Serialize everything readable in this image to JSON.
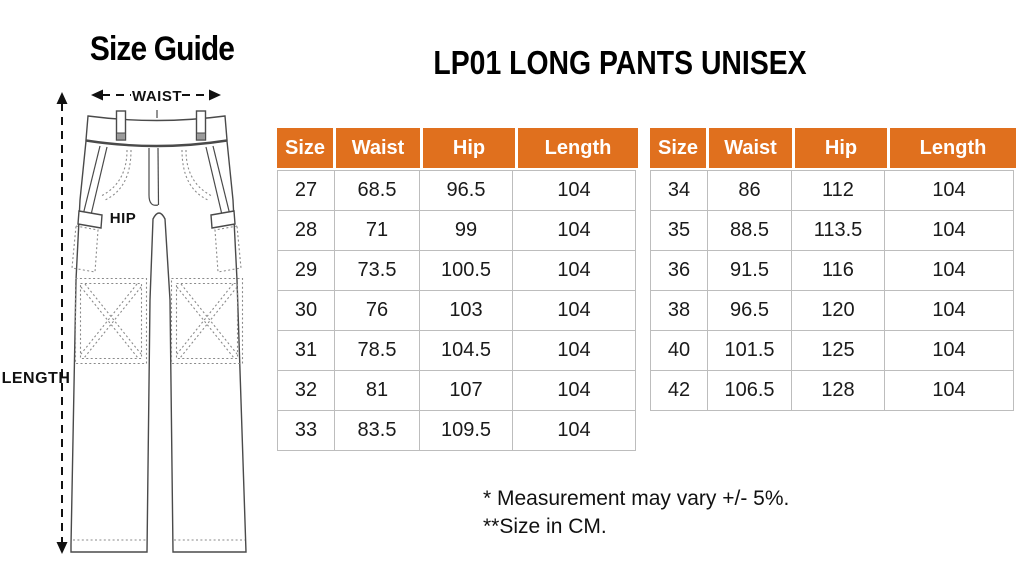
{
  "section_title": "Size Guide",
  "page_title": "LP01 LONG PANTS UNISEX",
  "diagram": {
    "waist_label": "WAIST",
    "hip_label": "HIP",
    "length_label": "LENGTH"
  },
  "size_table": {
    "headers": [
      "Size",
      "Waist",
      "Hip",
      "Length"
    ],
    "left_rows": [
      [
        "27",
        "68.5",
        "96.5",
        "104"
      ],
      [
        "28",
        "71",
        "99",
        "104"
      ],
      [
        "29",
        "73.5",
        "100.5",
        "104"
      ],
      [
        "30",
        "76",
        "103",
        "104"
      ],
      [
        "31",
        "78.5",
        "104.5",
        "104"
      ],
      [
        "32",
        "81",
        "107",
        "104"
      ],
      [
        "33",
        "83.5",
        "109.5",
        "104"
      ]
    ],
    "right_rows": [
      [
        "34",
        "86",
        "112",
        "104"
      ],
      [
        "35",
        "88.5",
        "113.5",
        "104"
      ],
      [
        "36",
        "91.5",
        "116",
        "104"
      ],
      [
        "38",
        "96.5",
        "120",
        "104"
      ],
      [
        "40",
        "101.5",
        "125",
        "104"
      ],
      [
        "42",
        "106.5",
        "128",
        "104"
      ]
    ]
  },
  "notes": [
    "* Measurement may vary +/- 5%.",
    "**Size in CM."
  ],
  "colors": {
    "header_bg": "#E0701E",
    "header_text": "#FFFFFF",
    "table_border": "#BDBDBD",
    "text": "#1A1A1A"
  }
}
